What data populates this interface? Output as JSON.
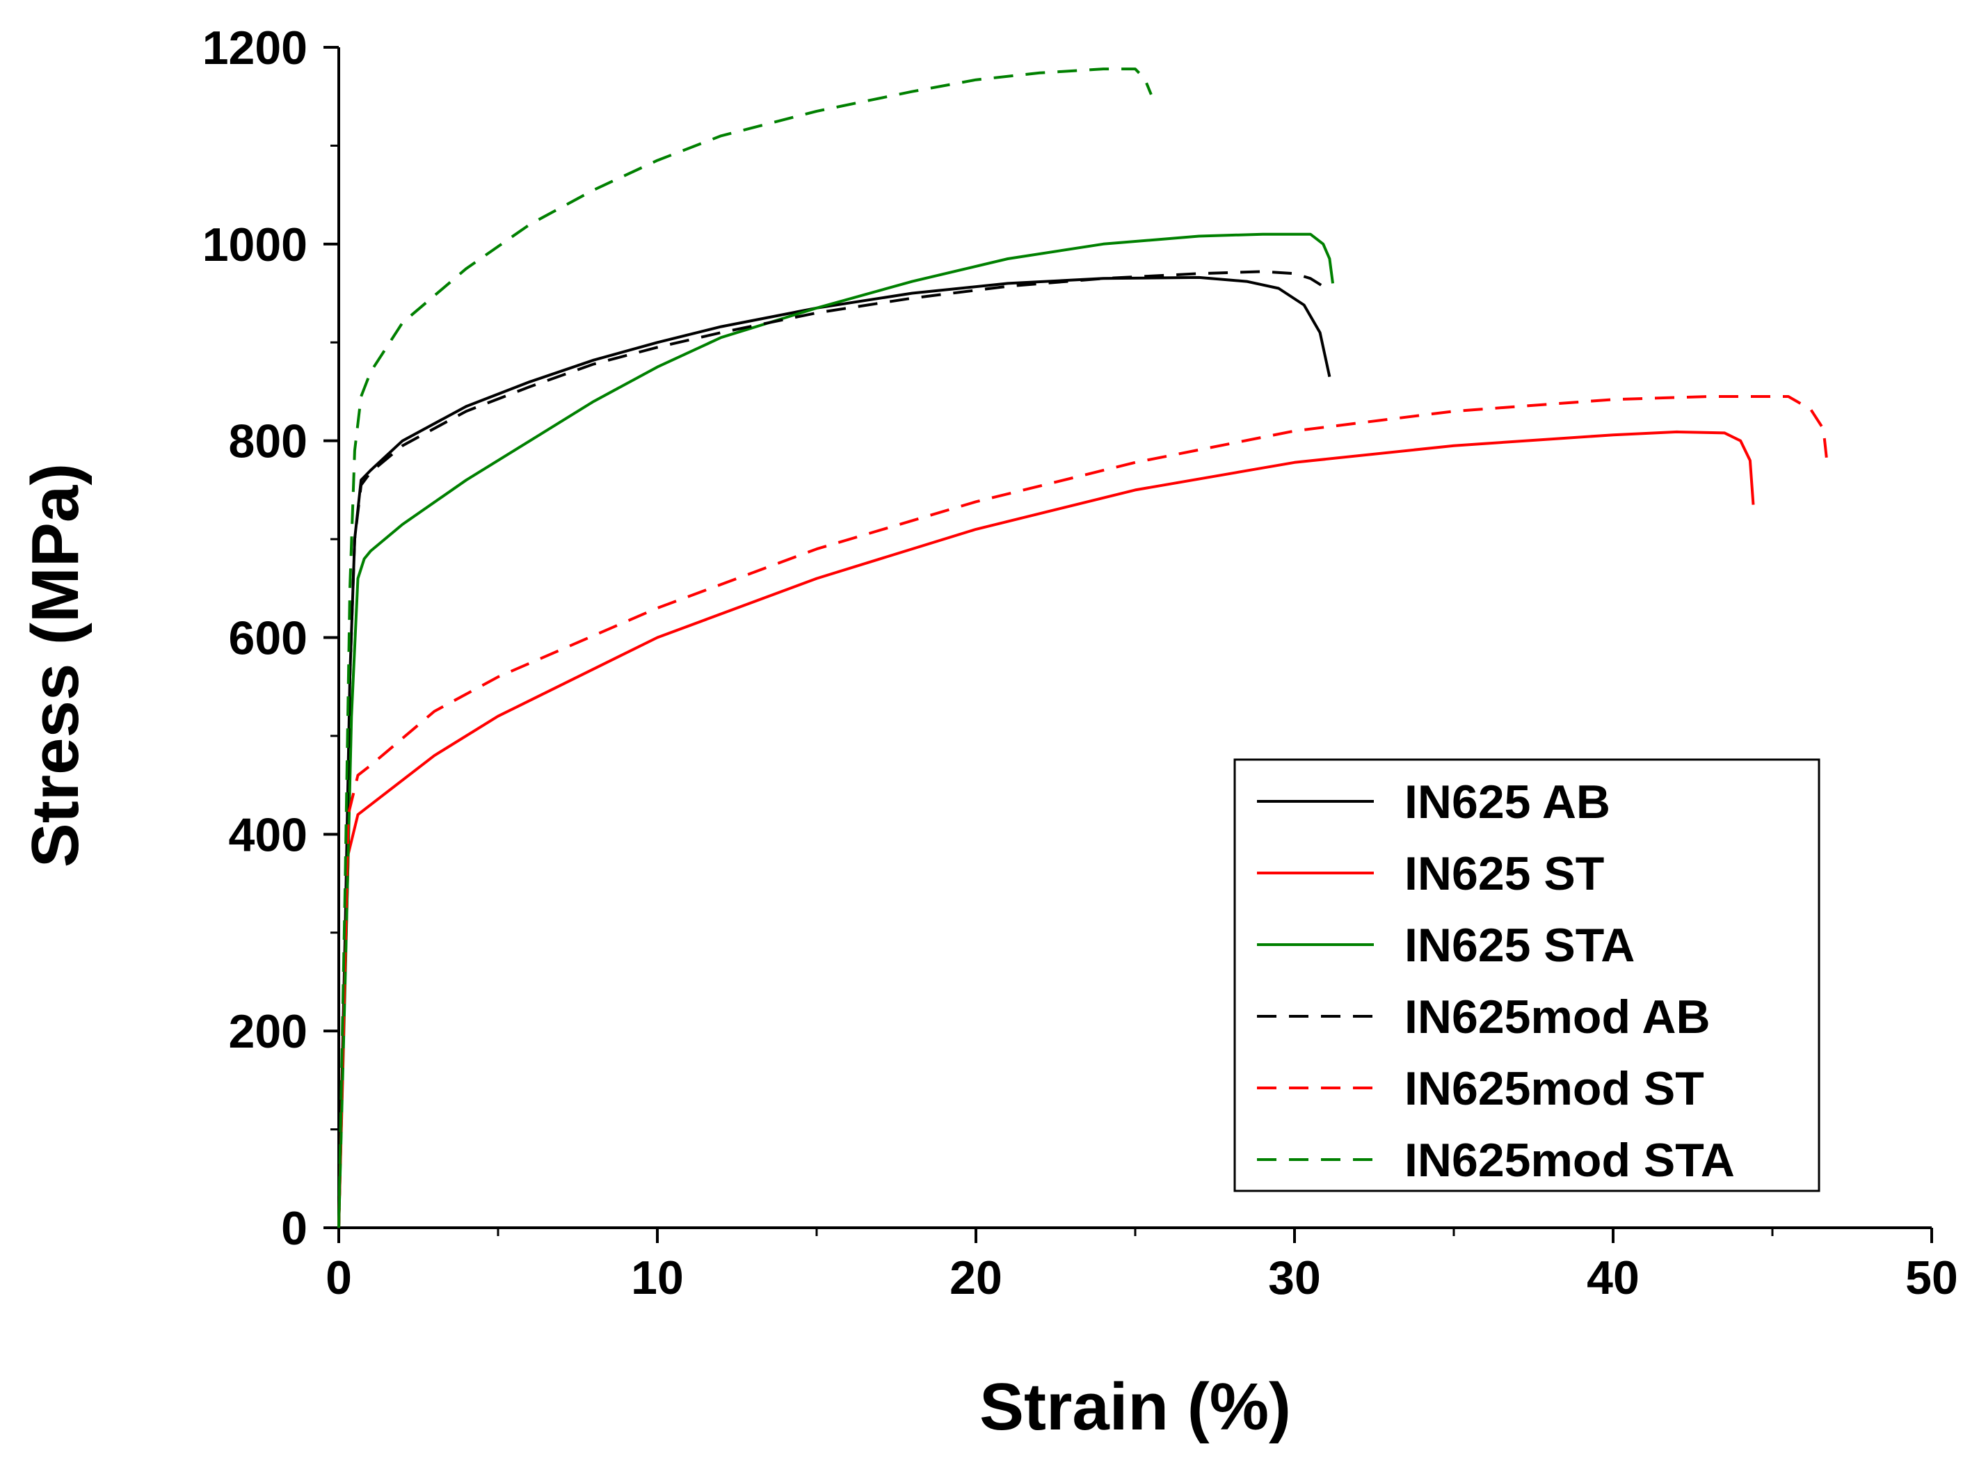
{
  "chart_data": {
    "type": "line",
    "title": "",
    "xlabel": "Strain (%)",
    "ylabel": "Stress (MPa)",
    "xlim": [
      0,
      50
    ],
    "ylim": [
      0,
      1200
    ],
    "xticks": [
      0,
      10,
      20,
      30,
      40,
      50
    ],
    "yticks": [
      0,
      200,
      400,
      600,
      800,
      1000,
      1200
    ],
    "grid": false,
    "legend_position": "bottom-right",
    "series": [
      {
        "name": "IN625 AB",
        "color": "#000000",
        "dash": "solid",
        "points": [
          [
            0,
            0
          ],
          [
            0.2,
            300
          ],
          [
            0.35,
            560
          ],
          [
            0.5,
            700
          ],
          [
            0.7,
            760
          ],
          [
            1,
            770
          ],
          [
            2,
            800
          ],
          [
            4,
            835
          ],
          [
            6,
            860
          ],
          [
            8,
            882
          ],
          [
            10,
            900
          ],
          [
            12,
            916
          ],
          [
            15,
            935
          ],
          [
            18,
            950
          ],
          [
            21,
            960
          ],
          [
            24,
            965
          ],
          [
            27,
            966
          ],
          [
            28.5,
            962
          ],
          [
            29.5,
            955
          ],
          [
            30.3,
            938
          ],
          [
            30.8,
            910
          ],
          [
            31.1,
            865
          ]
        ]
      },
      {
        "name": "IN625 ST",
        "color": "#ff0000",
        "dash": "solid",
        "points": [
          [
            0,
            0
          ],
          [
            0.15,
            200
          ],
          [
            0.3,
            380
          ],
          [
            0.6,
            420
          ],
          [
            1,
            430
          ],
          [
            3,
            480
          ],
          [
            5,
            520
          ],
          [
            10,
            600
          ],
          [
            15,
            660
          ],
          [
            20,
            710
          ],
          [
            25,
            750
          ],
          [
            30,
            778
          ],
          [
            35,
            795
          ],
          [
            40,
            806
          ],
          [
            42,
            809
          ],
          [
            43.5,
            808
          ],
          [
            44,
            800
          ],
          [
            44.3,
            780
          ],
          [
            44.4,
            735
          ]
        ]
      },
      {
        "name": "IN625 STA",
        "color": "#008000",
        "dash": "solid",
        "points": [
          [
            0,
            0
          ],
          [
            0.2,
            250
          ],
          [
            0.4,
            520
          ],
          [
            0.6,
            660
          ],
          [
            0.8,
            680
          ],
          [
            1,
            688
          ],
          [
            2,
            715
          ],
          [
            4,
            760
          ],
          [
            6,
            800
          ],
          [
            8,
            840
          ],
          [
            10,
            875
          ],
          [
            12,
            905
          ],
          [
            15,
            935
          ],
          [
            18,
            962
          ],
          [
            21,
            985
          ],
          [
            24,
            1000
          ],
          [
            27,
            1008
          ],
          [
            29,
            1010
          ],
          [
            30.5,
            1010
          ],
          [
            30.9,
            1000
          ],
          [
            31.1,
            985
          ],
          [
            31.2,
            960
          ]
        ]
      },
      {
        "name": "IN625mod AB",
        "color": "#000000",
        "dash": "dashed",
        "points": [
          [
            0,
            0
          ],
          [
            0.2,
            300
          ],
          [
            0.35,
            560
          ],
          [
            0.5,
            700
          ],
          [
            0.7,
            755
          ],
          [
            1,
            768
          ],
          [
            2,
            795
          ],
          [
            4,
            830
          ],
          [
            6,
            855
          ],
          [
            8,
            878
          ],
          [
            10,
            895
          ],
          [
            12,
            910
          ],
          [
            15,
            930
          ],
          [
            18,
            945
          ],
          [
            21,
            957
          ],
          [
            24,
            965
          ],
          [
            27,
            970
          ],
          [
            29,
            972
          ],
          [
            30,
            970
          ],
          [
            30.5,
            965
          ],
          [
            31,
            955
          ]
        ]
      },
      {
        "name": "IN625mod ST",
        "color": "#ff0000",
        "dash": "dashed",
        "points": [
          [
            0,
            0
          ],
          [
            0.15,
            200
          ],
          [
            0.3,
            420
          ],
          [
            0.6,
            460
          ],
          [
            1,
            470
          ],
          [
            3,
            525
          ],
          [
            5,
            560
          ],
          [
            10,
            630
          ],
          [
            15,
            690
          ],
          [
            20,
            738
          ],
          [
            25,
            778
          ],
          [
            30,
            810
          ],
          [
            35,
            830
          ],
          [
            40,
            842
          ],
          [
            43,
            845
          ],
          [
            45.5,
            845
          ],
          [
            46.2,
            832
          ],
          [
            46.6,
            812
          ],
          [
            46.7,
            782
          ]
        ]
      },
      {
        "name": "IN625mod STA",
        "color": "#008000",
        "dash": "dashed",
        "points": [
          [
            0,
            0
          ],
          [
            0.2,
            350
          ],
          [
            0.35,
            650
          ],
          [
            0.5,
            790
          ],
          [
            0.7,
            845
          ],
          [
            1,
            870
          ],
          [
            2,
            920
          ],
          [
            4,
            975
          ],
          [
            6,
            1020
          ],
          [
            8,
            1055
          ],
          [
            10,
            1085
          ],
          [
            12,
            1110
          ],
          [
            15,
            1135
          ],
          [
            18,
            1155
          ],
          [
            20,
            1167
          ],
          [
            22,
            1174
          ],
          [
            24,
            1178
          ],
          [
            25,
            1178
          ],
          [
            25.3,
            1168
          ],
          [
            25.5,
            1152
          ]
        ]
      }
    ]
  }
}
